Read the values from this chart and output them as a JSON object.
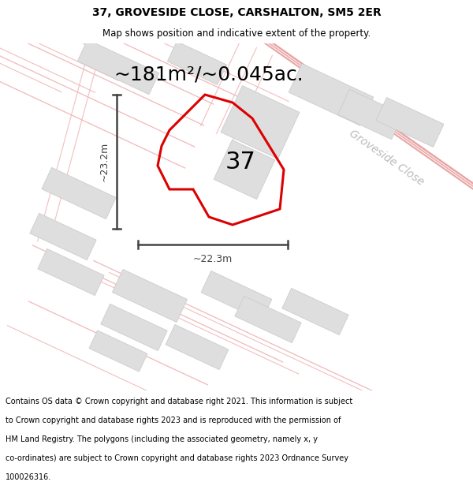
{
  "title_line1": "37, GROVESIDE CLOSE, CARSHALTON, SM5 2ER",
  "title_line2": "Map shows position and indicative extent of the property.",
  "area_text": "~181m²/~0.045ac.",
  "dim_height": "~23.2m",
  "dim_width": "~22.3m",
  "property_number": "37",
  "road_label": "Groveside Close",
  "footer_lines": [
    "Contains OS data © Crown copyright and database right 2021. This information is subject",
    "to Crown copyright and database rights 2023 and is reproduced with the permission of",
    "HM Land Registry. The polygons (including the associated geometry, namely x, y",
    "co-ordinates) are subject to Crown copyright and database rights 2023 Ordnance Survey",
    "100026316."
  ],
  "bg_color": "#ffffff",
  "map_bg": "#f8f6f6",
  "property_fill": "#e8e4e4",
  "property_outline": "#dd0000",
  "other_fill": "#dedede",
  "other_edge": "#cccccc",
  "road_line_color": "#f0b8b8",
  "road_line_color2": "#e8a0a0",
  "dim_color": "#444444",
  "title_fontsize": 10,
  "subtitle_fontsize": 8.5,
  "area_fontsize": 18,
  "number_fontsize": 22,
  "road_label_fontsize": 10,
  "dim_fontsize": 9,
  "footer_fontsize": 7.0
}
